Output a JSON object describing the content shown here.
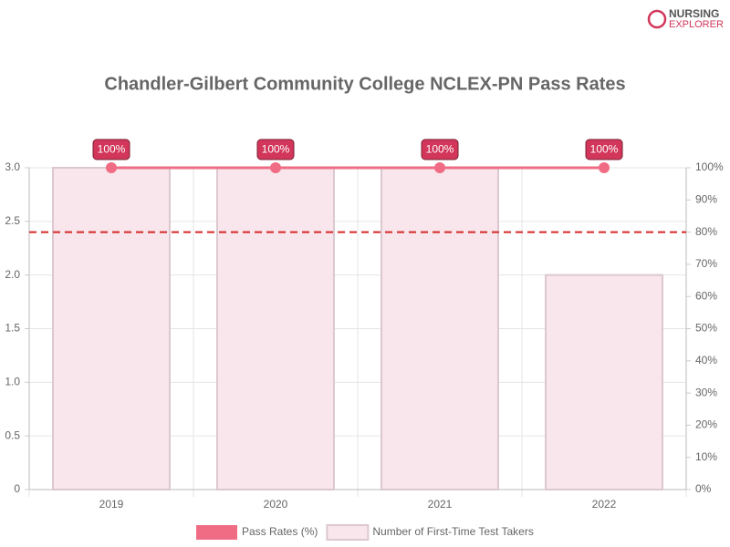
{
  "logo": {
    "line1": "NURSING",
    "line2": "EXPLORER"
  },
  "chart_data": {
    "type": "combo",
    "title": "Chandler-Gilbert Community College NCLEX-PN Pass Rates",
    "categories": [
      "2019",
      "2020",
      "2021",
      "2022"
    ],
    "series": [
      {
        "name": "Pass Rates (%)",
        "type": "line",
        "axis": "y2",
        "color": "#f06c85",
        "values": [
          100,
          100,
          100,
          100
        ],
        "value_labels": [
          "100%",
          "100%",
          "100%",
          "100%"
        ]
      },
      {
        "name": "Number of First-Time Test Takers",
        "type": "bar",
        "color": "#f8e6ec",
        "values": [
          3,
          3,
          3,
          2
        ]
      }
    ],
    "ylim": [
      0,
      3
    ],
    "yticks": [
      0,
      0.5,
      {
        "value": 1,
        "label": "1.0"
      },
      1.5,
      {
        "value": 2,
        "label": "2.0"
      },
      2.5,
      {
        "value": 3,
        "label": "3.0"
      }
    ],
    "y2lim": [
      0,
      100
    ],
    "y2ticks": [
      {
        "value": 0,
        "label": "0%"
      },
      {
        "value": 10,
        "label": "10%"
      },
      {
        "value": 20,
        "label": "20%"
      },
      {
        "value": 30,
        "label": "30%"
      },
      {
        "value": 40,
        "label": "40%"
      },
      {
        "value": 50,
        "label": "50%"
      },
      {
        "value": 60,
        "label": "60%"
      },
      {
        "value": 70,
        "label": "70%"
      },
      {
        "value": 80,
        "label": "80%"
      },
      {
        "value": 90,
        "label": "90%"
      },
      {
        "value": 100,
        "label": "100%"
      }
    ],
    "reference_line": {
      "value": 80,
      "axis": "y2",
      "color": "#d62728"
    },
    "grid": true
  }
}
